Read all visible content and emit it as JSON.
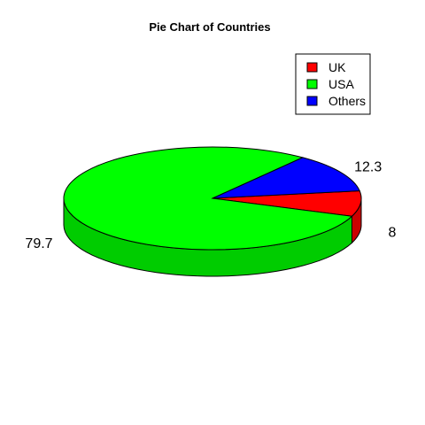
{
  "chart_data": {
    "type": "pie",
    "title": "Pie Chart of Countries",
    "three_d": true,
    "labels": [
      "UK",
      "USA",
      "Others"
    ],
    "values": [
      8,
      79.7,
      12.3
    ],
    "colors": [
      "#ff0000",
      "#00ff00",
      "#0000ff"
    ],
    "legend": {
      "placement": "top-right",
      "entries": [
        "UK",
        "USA",
        "Others"
      ]
    }
  }
}
